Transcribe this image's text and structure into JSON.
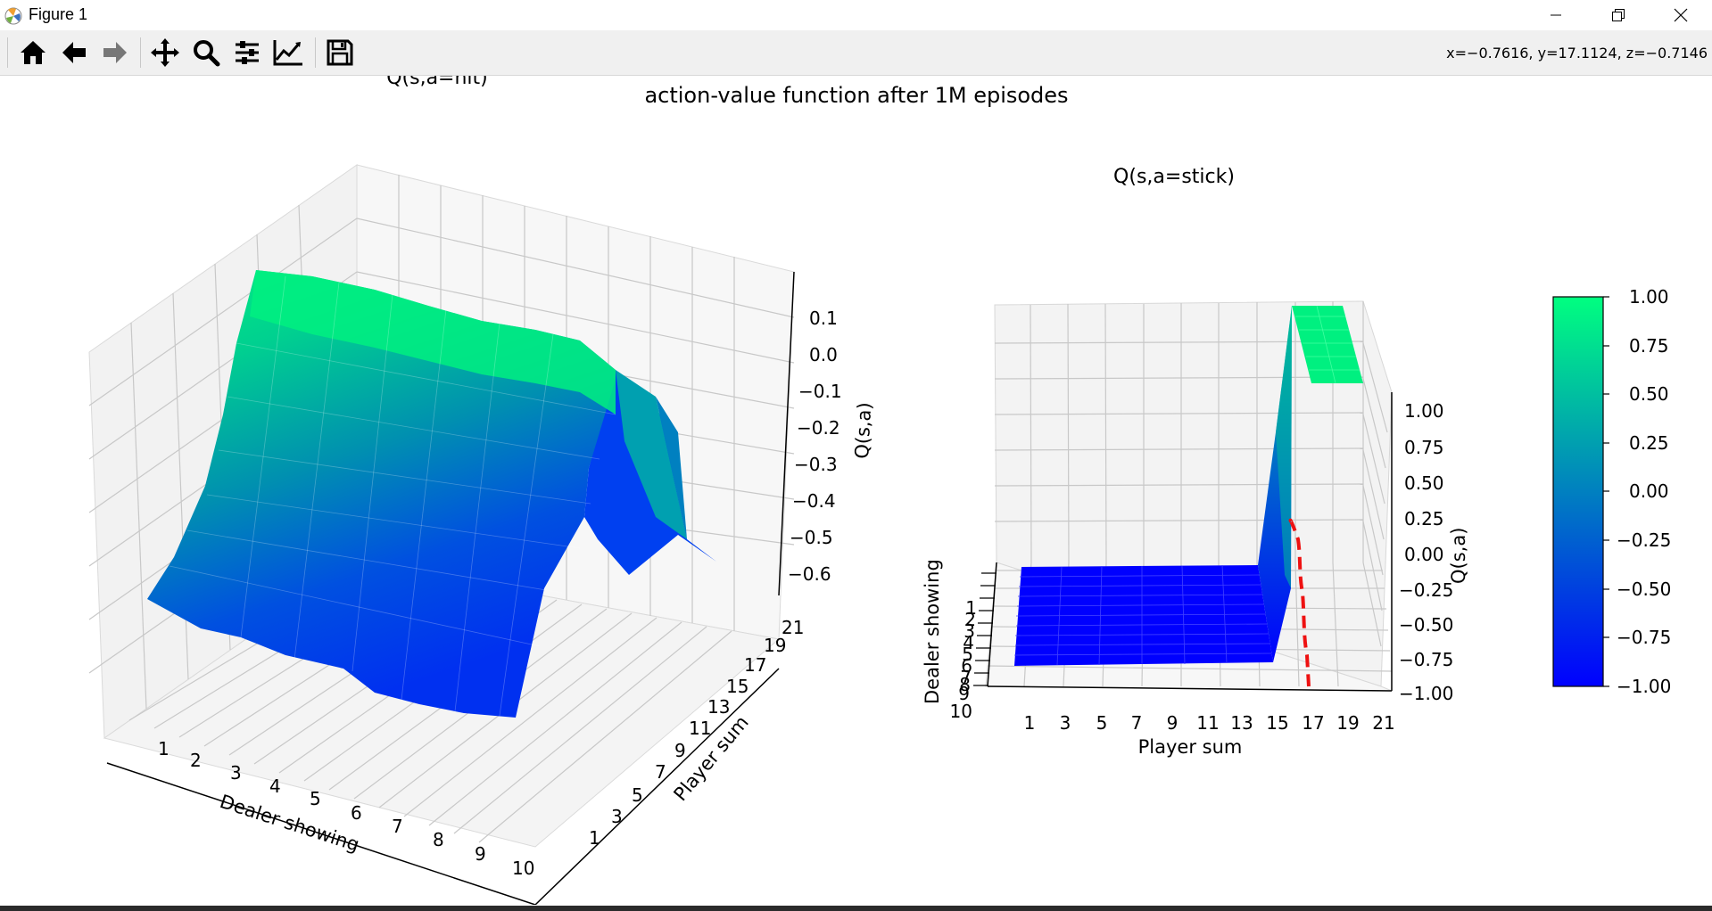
{
  "window": {
    "title": "Figure 1",
    "minimize_icon": "minimize-icon",
    "restore_icon": "restore-icon",
    "close_icon": "close-icon"
  },
  "toolbar": {
    "buttons": [
      "home-icon",
      "back-arrow-icon",
      "forward-arrow-icon",
      "pan-move-icon",
      "zoom-magnifier-icon",
      "configure-subplots-icon",
      "edit-axis-curve-icon",
      "save-floppy-icon"
    ],
    "coords_readout": "x=−0.7616, y=17.1124, z=−0.7146"
  },
  "figure": {
    "suptitle": "action-value function after 1M episodes"
  },
  "chart_data": [
    {
      "type": "surface3d",
      "title": "Q(s,a=hit)",
      "xlabel": "Dealer showing",
      "ylabel": "Player sum",
      "zlabel": "Q(s,a)",
      "x_ticks": [
        "1",
        "2",
        "3",
        "4",
        "5",
        "6",
        "7",
        "8",
        "9",
        "10"
      ],
      "y_ticks": [
        "1",
        "3",
        "5",
        "7",
        "9",
        "11",
        "13",
        "15",
        "17",
        "19",
        "21"
      ],
      "z_ticks": [
        "0.1",
        "0.0",
        "−0.1",
        "−0.2",
        "−0.3",
        "−0.4",
        "−0.5",
        "−0.6"
      ],
      "zlim": [
        -0.65,
        0.15
      ],
      "colormap": "winter",
      "description_values": {
        "low_player_sum_q": -0.05,
        "high_player_sum_q": -0.6
      }
    },
    {
      "type": "surface3d",
      "title": "Q(s,a=stick)",
      "xlabel": "Player sum",
      "ylabel": "Dealer showing",
      "zlabel": "Q(s,a)",
      "x_ticks": [
        "1",
        "3",
        "5",
        "7",
        "9",
        "11",
        "13",
        "15",
        "17",
        "19",
        "21"
      ],
      "y_ticks": [
        "1",
        "2",
        "3",
        "4",
        "5",
        "6",
        "7",
        "8",
        "9",
        "10"
      ],
      "y_tick_display": [
        "1",
        "2",
        "3",
        "4",
        "5",
        "6",
        "7",
        "8",
        "9",
        "10"
      ],
      "z_ticks": [
        "1.00",
        "0.75",
        "0.50",
        "0.25",
        "0.00",
        "−0.25",
        "−0.50",
        "−0.75",
        "−1.00"
      ],
      "zlim": [
        -1.0,
        1.0
      ],
      "colormap": "winter",
      "description_values": {
        "player_sum_below_16_q": -1.0,
        "player_sum_above_16_q": 1.0
      }
    },
    {
      "type": "colorbar",
      "ticks": [
        "1.00",
        "0.75",
        "0.50",
        "0.25",
        "0.00",
        "−0.25",
        "−0.50",
        "−0.75",
        "−1.00"
      ],
      "range": [
        -1.0,
        1.0
      ],
      "colors": {
        "top": "#00ff80",
        "bottom": "#0000ff"
      }
    }
  ],
  "colors": {
    "surface_high": "#00f080",
    "surface_low": "#0000ff",
    "mid": "#0090a0",
    "dashed_line": "#ee1111"
  }
}
